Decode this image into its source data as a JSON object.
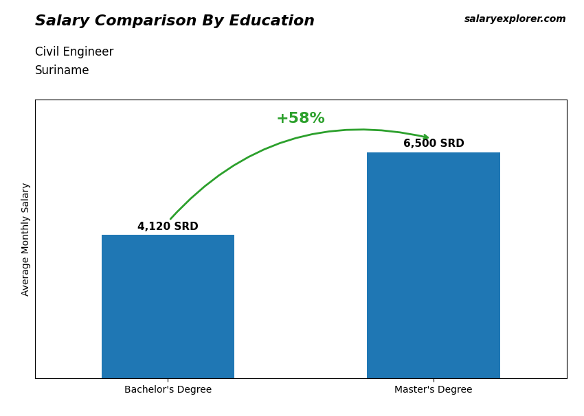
{
  "chart_data": {
    "type": "bar",
    "title": "Salary Comparison By Education",
    "subtitle": [
      "Civil Engineer",
      "Suriname"
    ],
    "ylabel": "Average Monthly Salary",
    "categories": [
      "Bachelor's Degree",
      "Master's Degree"
    ],
    "values": [
      4120,
      6500
    ],
    "value_labels": [
      "4,120 SRD",
      "6,500 SRD"
    ],
    "data_labels": true,
    "annotations": [
      "+58%",
      "salary",
      "explorer",
      ".com"
    ],
    "ylim": [
      0,
      8000
    ],
    "tick_labels": "x",
    "grid": false
  }
}
